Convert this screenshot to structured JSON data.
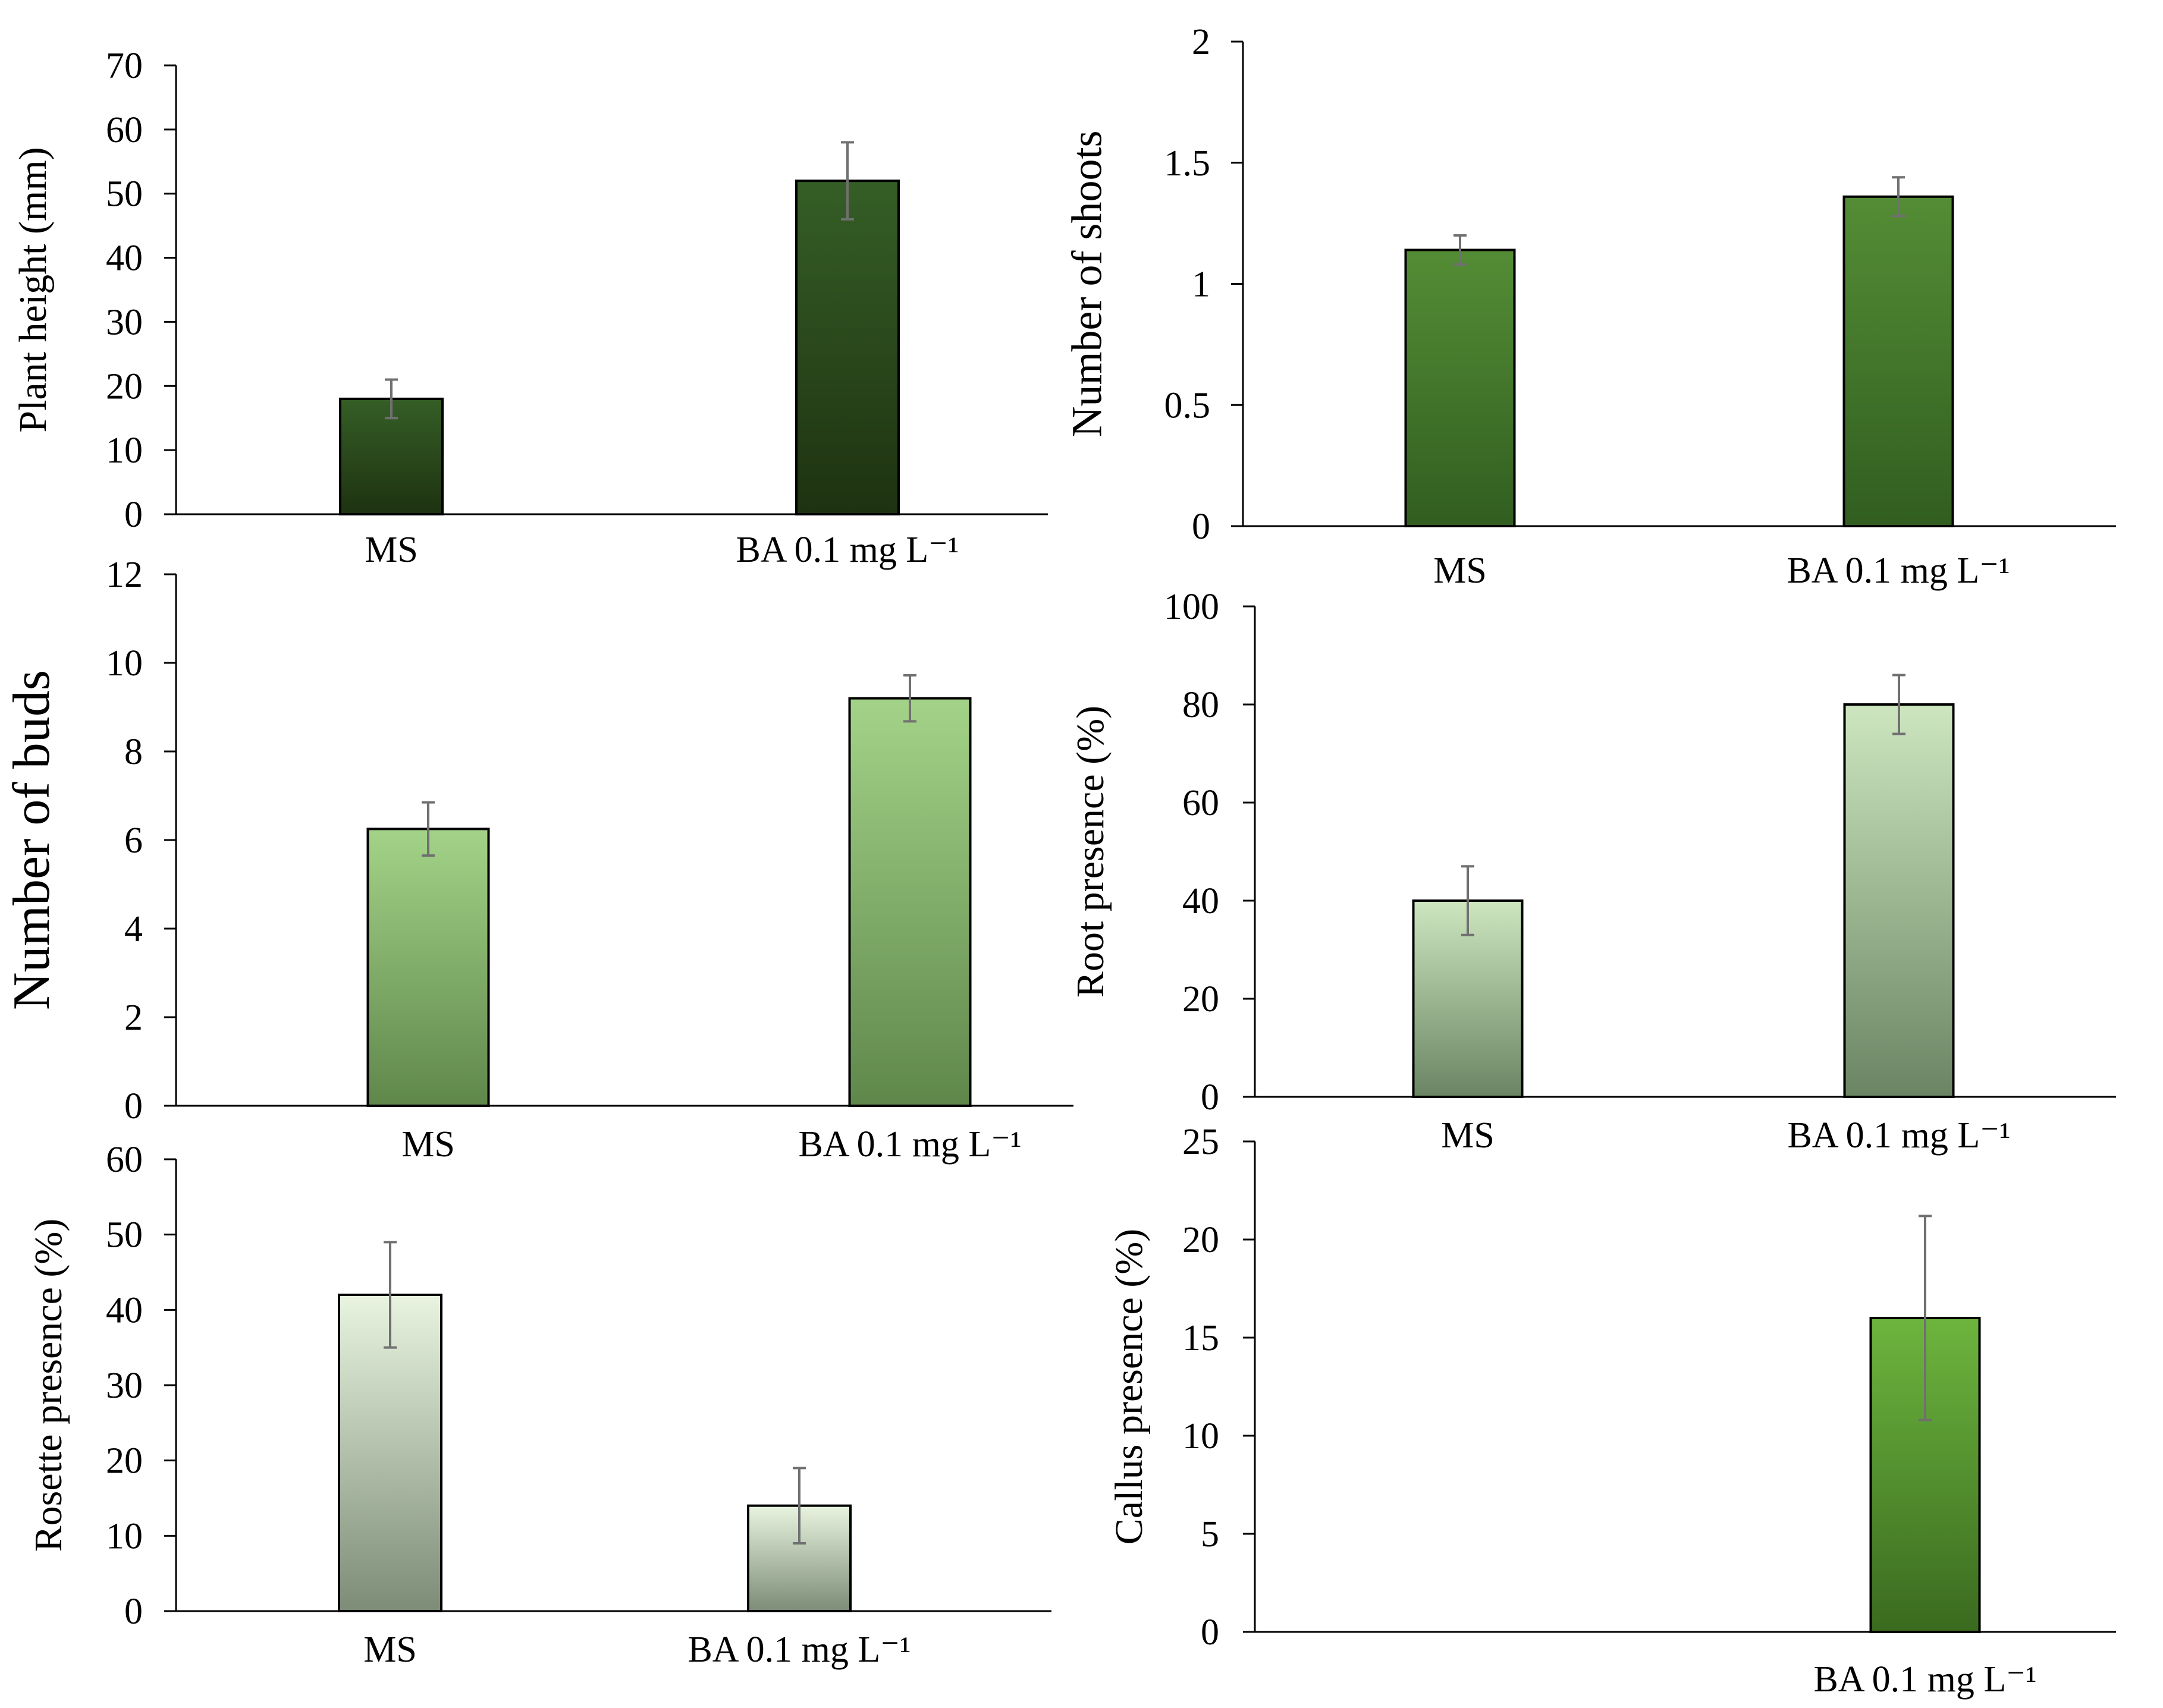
{
  "colors": {
    "axis": "#000000",
    "bar_outline": "#000000",
    "error_bar": "#707070"
  },
  "chart_data": [
    {
      "id": "plant-height",
      "type": "bar",
      "categories": [
        "MS",
        "BA 0.1 mg L⁻¹"
      ],
      "values": [
        18,
        52
      ],
      "errors": [
        3,
        6
      ],
      "ylabel": "Plant height  (mm)",
      "xlabel": "",
      "ylim": [
        0,
        70
      ],
      "yticks": [
        0,
        10,
        20,
        30,
        40,
        50,
        60,
        70
      ],
      "grid": false,
      "legend": "none",
      "gradient": [
        "#355e26",
        "#1e3211"
      ]
    },
    {
      "id": "number-of-shoots",
      "type": "bar",
      "categories": [
        "MS",
        "BA 0.1 mg L⁻¹"
      ],
      "values": [
        1.14,
        1.36
      ],
      "errors": [
        0.06,
        0.08
      ],
      "ylabel": "Number of shoots",
      "xlabel": "",
      "ylim": [
        0,
        2
      ],
      "yticks": [
        0,
        0.5,
        1,
        1.5,
        2
      ],
      "grid": false,
      "legend": "none",
      "gradient": [
        "#548d35",
        "#315e20"
      ]
    },
    {
      "id": "number-of-buds",
      "type": "bar",
      "categories": [
        "MS",
        "BA 0.1 mg L⁻¹"
      ],
      "values": [
        6.25,
        9.2
      ],
      "errors": [
        0.6,
        0.52
      ],
      "ylabel": "Number of  buds",
      "xlabel": "",
      "ylim": [
        0,
        12
      ],
      "yticks": [
        0,
        2,
        4,
        6,
        8,
        10,
        12
      ],
      "grid": false,
      "legend": "none",
      "gradient": [
        "#a3d388",
        "#5f874b"
      ]
    },
    {
      "id": "root-presence",
      "type": "bar",
      "categories": [
        "MS",
        "BA 0.1 mg L⁻¹"
      ],
      "values": [
        40,
        80
      ],
      "errors": [
        7,
        6
      ],
      "ylabel": "Root presence (%)",
      "xlabel": "",
      "ylim": [
        0,
        100
      ],
      "yticks": [
        0,
        20,
        40,
        60,
        80,
        100
      ],
      "grid": false,
      "legend": "none",
      "gradient": [
        "#cde6c0",
        "#6a8563"
      ]
    },
    {
      "id": "rosette-presence",
      "type": "bar",
      "categories": [
        "MS",
        "BA 0.1 mg L⁻¹"
      ],
      "values": [
        42,
        14
      ],
      "errors": [
        7,
        5
      ],
      "ylabel": "Rosette presence (%)",
      "xlabel": "",
      "ylim": [
        0,
        60
      ],
      "yticks": [
        0,
        10,
        20,
        30,
        40,
        50,
        60
      ],
      "grid": false,
      "legend": "none",
      "gradient": [
        "#e8f4e0",
        "#7c8c77"
      ]
    },
    {
      "id": "callus-presence",
      "type": "bar",
      "categories": [
        "",
        "BA 0.1 mg L⁻¹"
      ],
      "values": [
        0,
        16
      ],
      "errors": [
        0,
        5.2
      ],
      "ylabel": "Callus presence (%)",
      "xlabel": "",
      "ylim": [
        0,
        25
      ],
      "yticks": [
        0,
        5,
        10,
        15,
        20,
        25
      ],
      "grid": false,
      "legend": "none",
      "gradient": [
        "#6db53e",
        "#3a6a1f"
      ]
    }
  ]
}
